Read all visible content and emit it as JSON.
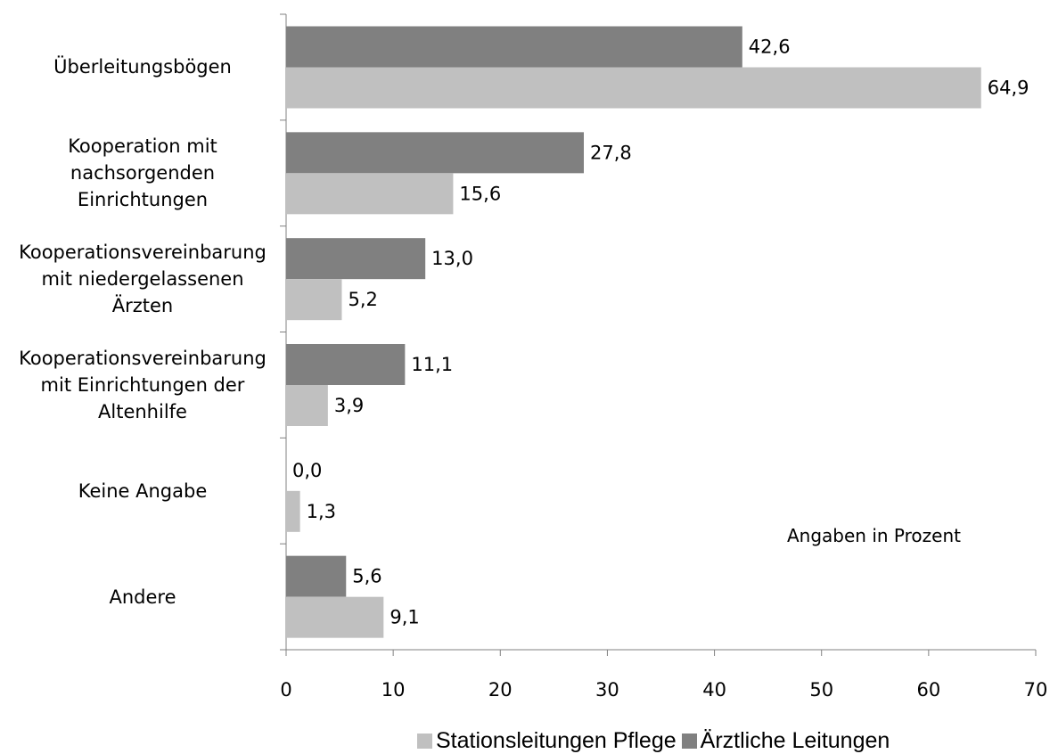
{
  "chart_data": {
    "type": "bar",
    "orientation": "horizontal",
    "categories": [
      "Überleitungsbögen",
      "Kooperation mit\nnachsorgenden\nEinrichtungen",
      "Kooperationsvereinbarung\nmit niedergelassenen\nÄrzten",
      "Kooperationsvereinbarung\nmit Einrichtungen der\nAltenhilfe",
      "Keine Angabe",
      "Andere"
    ],
    "series": [
      {
        "name": "Ärztliche Leitungen",
        "color": "#808080",
        "values": [
          42.6,
          27.8,
          13.0,
          11.1,
          0.0,
          5.6
        ],
        "labels": [
          "42,6",
          "27,8",
          "13,0",
          "11,1",
          "0,0",
          "5,6"
        ]
      },
      {
        "name": "Stationsleitungen Pflege",
        "color": "#c0c0c0",
        "values": [
          64.9,
          15.6,
          5.2,
          3.9,
          1.3,
          9.1
        ],
        "labels": [
          "64,9",
          "15,6",
          "5,2",
          "3,9",
          "1,3",
          "9,1"
        ]
      }
    ],
    "xlim": [
      0,
      70
    ],
    "xticks": [
      "0",
      "10",
      "20",
      "30",
      "40",
      "50",
      "60",
      "70"
    ],
    "annotation": "Angaben in Prozent",
    "legend": {
      "position": "bottom",
      "order": [
        "Stationsleitungen Pflege",
        "Ärztliche Leitungen"
      ]
    },
    "grid": false
  }
}
